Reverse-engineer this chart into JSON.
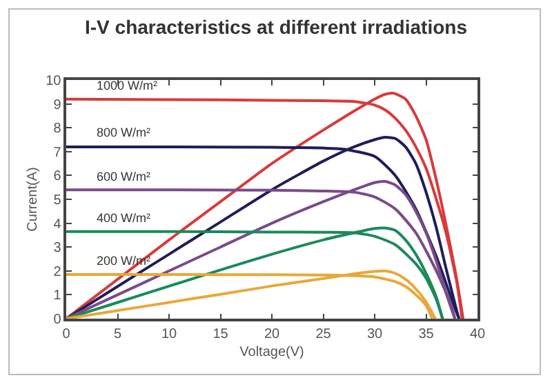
{
  "chart_data": {
    "type": "line",
    "title": "I-V characteristics at different irradiations",
    "xlabel": "Voltage(V)",
    "ylabel": "Current(A)",
    "xlim": [
      0,
      40
    ],
    "xticks": [
      0,
      5,
      10,
      15,
      20,
      25,
      30,
      35,
      40
    ],
    "ylim": [
      0,
      10
    ],
    "yticks": [
      0,
      1,
      2,
      3,
      4,
      5,
      6,
      7,
      8,
      9,
      10
    ],
    "grid": false,
    "legend": false,
    "marker": "none",
    "line_style": "solid",
    "series": [
      {
        "name": "1000 W/m²",
        "color": "#d93a3a",
        "x": [
          0,
          10,
          20,
          25,
          28,
          30,
          31,
          32,
          33,
          34,
          35,
          36,
          37,
          38,
          38.5
        ],
        "values": [
          9.2,
          9.18,
          9.15,
          9.13,
          9.1,
          8.95,
          8.75,
          8.4,
          7.9,
          7.2,
          6.3,
          5.0,
          3.5,
          1.5,
          0
        ]
      },
      {
        "color": "#d93a3a",
        "x": [
          0,
          5,
          10,
          15,
          20,
          25,
          28,
          30,
          31,
          31.8,
          33,
          34,
          35,
          36,
          37,
          38,
          38.6
        ],
        "values": [
          0,
          1.65,
          3.3,
          4.9,
          6.5,
          7.9,
          8.7,
          9.2,
          9.4,
          9.45,
          9.2,
          8.5,
          7.5,
          5.8,
          3.8,
          1.6,
          0
        ]
      },
      {
        "name": "800 W/m²",
        "color": "#1e1e5a",
        "x": [
          0,
          10,
          20,
          25,
          27,
          30,
          32,
          34,
          36,
          37.5,
          38.2
        ],
        "values": [
          7.2,
          7.2,
          7.18,
          7.15,
          7.1,
          6.8,
          6.0,
          4.6,
          2.6,
          0.8,
          0
        ]
      },
      {
        "color": "#1e1e5a",
        "x": [
          0,
          5,
          10,
          15,
          20,
          25,
          28,
          30,
          31,
          32,
          33,
          34,
          35,
          36,
          37,
          38,
          38.2
        ],
        "values": [
          0,
          1.35,
          2.7,
          4.05,
          5.4,
          6.6,
          7.2,
          7.5,
          7.6,
          7.55,
          7.2,
          6.5,
          5.3,
          3.8,
          2.0,
          0.3,
          0
        ]
      },
      {
        "name": "600 W/m²",
        "color": "#7a4a8a",
        "x": [
          0,
          10,
          20,
          25,
          28,
          30,
          32,
          34,
          36,
          37.5,
          37.8
        ],
        "values": [
          5.4,
          5.4,
          5.38,
          5.35,
          5.3,
          5.1,
          4.6,
          3.6,
          2.0,
          0.5,
          0
        ]
      },
      {
        "color": "#7a4a8a",
        "x": [
          0,
          5,
          10,
          15,
          20,
          25,
          28,
          30,
          31,
          32,
          33,
          34,
          35,
          36,
          37,
          37.8
        ],
        "values": [
          0,
          1.0,
          2.0,
          3.0,
          4.0,
          4.9,
          5.4,
          5.7,
          5.75,
          5.6,
          5.2,
          4.5,
          3.6,
          2.4,
          1.0,
          0
        ]
      },
      {
        "name": "400 W/m²",
        "color": "#1a8a5a",
        "x": [
          0,
          10,
          20,
          25,
          28,
          30,
          32,
          34,
          35,
          36,
          36.6
        ],
        "values": [
          3.65,
          3.65,
          3.63,
          3.62,
          3.6,
          3.45,
          3.1,
          2.3,
          1.7,
          0.8,
          0
        ]
      },
      {
        "color": "#1a8a5a",
        "x": [
          0,
          5,
          10,
          15,
          20,
          25,
          28,
          30,
          31,
          32,
          33,
          34,
          35,
          36,
          36.6
        ],
        "values": [
          0,
          0.68,
          1.36,
          2.04,
          2.7,
          3.3,
          3.6,
          3.78,
          3.8,
          3.7,
          3.3,
          2.7,
          1.9,
          0.9,
          0
        ]
      },
      {
        "name": "200 W/m²",
        "color": "#e8a838",
        "x": [
          0,
          10,
          20,
          25,
          28,
          30,
          32,
          33,
          34,
          35,
          35.6
        ],
        "values": [
          1.85,
          1.85,
          1.84,
          1.83,
          1.8,
          1.75,
          1.55,
          1.35,
          1.0,
          0.55,
          0
        ]
      },
      {
        "color": "#e8a838",
        "x": [
          0,
          5,
          10,
          15,
          20,
          25,
          28,
          30,
          31,
          32,
          33,
          34,
          35,
          35.9
        ],
        "values": [
          0,
          0.34,
          0.68,
          1.02,
          1.37,
          1.68,
          1.88,
          1.98,
          2.0,
          1.9,
          1.65,
          1.25,
          0.7,
          0
        ]
      }
    ]
  }
}
